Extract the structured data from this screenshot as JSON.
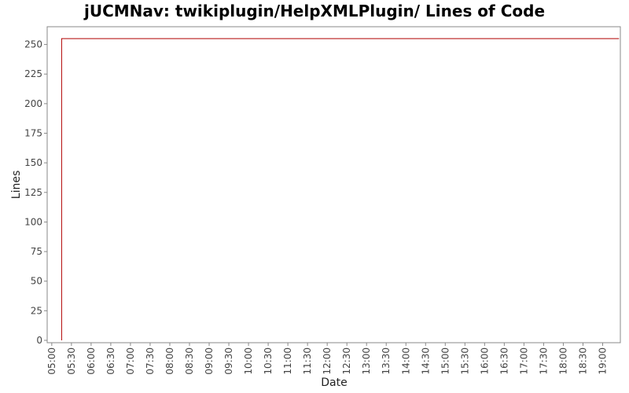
{
  "chart_data": {
    "type": "line",
    "title": "jUCMNav: twikiplugin/HelpXMLPlugin/ Lines of Code",
    "xlabel": "Date",
    "ylabel": "Lines",
    "x_tick_labels": [
      "05:00",
      "05:30",
      "06:00",
      "06:30",
      "07:00",
      "07:30",
      "08:00",
      "08:30",
      "09:00",
      "09:30",
      "10:00",
      "10:30",
      "11:00",
      "11:30",
      "12:00",
      "12:30",
      "13:00",
      "13:30",
      "14:00",
      "14:30",
      "15:00",
      "15:30",
      "16:00",
      "16:30",
      "17:00",
      "17:30",
      "18:00",
      "18:30",
      "19:00"
    ],
    "y_ticks": [
      0,
      25,
      50,
      75,
      100,
      125,
      150,
      175,
      200,
      225,
      250
    ],
    "ylim": [
      0,
      265
    ],
    "xlim": [
      "04:53",
      "19:27"
    ],
    "grid": false,
    "series": [
      {
        "color": "#b00000",
        "points": [
          {
            "x": "05:15",
            "y": 0
          },
          {
            "x": "05:15",
            "y": 255
          },
          {
            "x": "19:25",
            "y": 255
          }
        ]
      }
    ]
  }
}
